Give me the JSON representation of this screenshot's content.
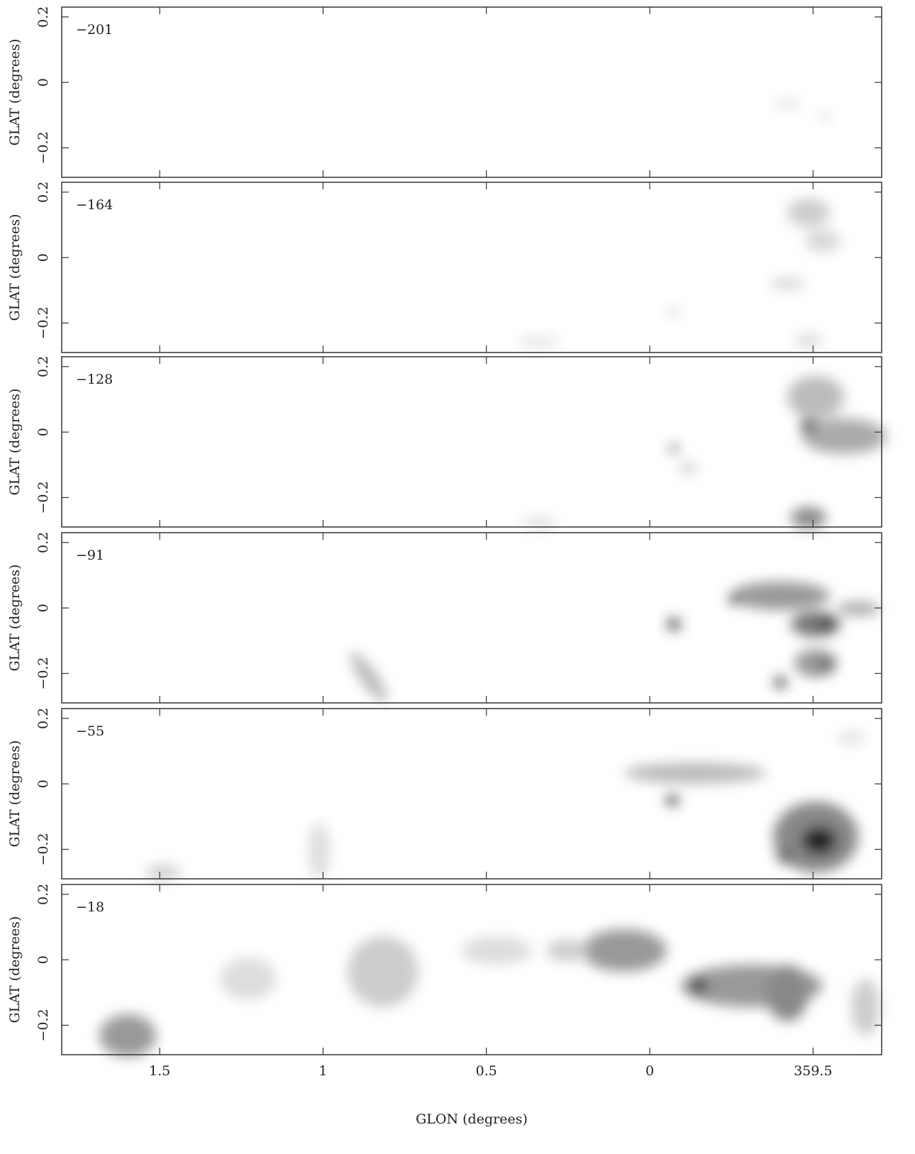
{
  "chart_data": [
    {
      "type": "image",
      "label": "−201",
      "ylabel": "GLAT (degrees)",
      "xlim": [
        1.8,
        -0.71
      ],
      "ylim": [
        -0.29,
        0.23
      ],
      "xticks": [
        1.5,
        1,
        0.5,
        0,
        {
          "value": -0.5,
          "label": "359.5"
        }
      ],
      "yticks": [
        0.2,
        0,
        {
          "value": -0.2,
          "label": "−0.2"
        }
      ]
    },
    {
      "type": "image",
      "label": "−164",
      "ylabel": "GLAT (degrees)",
      "xlim": [
        1.8,
        -0.71
      ],
      "ylim": [
        -0.29,
        0.23
      ],
      "xticks": [
        1.5,
        1,
        0.5,
        0,
        {
          "value": -0.5,
          "label": "359.5"
        }
      ],
      "yticks": [
        0.2,
        0,
        {
          "value": -0.2,
          "label": "−0.2"
        }
      ]
    },
    {
      "type": "image",
      "label": "−128",
      "ylabel": "GLAT (degrees)",
      "xlim": [
        1.8,
        -0.71
      ],
      "ylim": [
        -0.29,
        0.23
      ],
      "xticks": [
        1.5,
        1,
        0.5,
        0,
        {
          "value": -0.5,
          "label": "359.5"
        }
      ],
      "yticks": [
        0.2,
        0,
        {
          "value": -0.2,
          "label": "−0.2"
        }
      ]
    },
    {
      "type": "image",
      "label": "−91",
      "ylabel": "GLAT (degrees)",
      "xlim": [
        1.8,
        -0.71
      ],
      "ylim": [
        -0.29,
        0.23
      ],
      "xticks": [
        1.5,
        1,
        0.5,
        0,
        {
          "value": -0.5,
          "label": "359.5"
        }
      ],
      "yticks": [
        0.2,
        0,
        {
          "value": -0.2,
          "label": "−0.2"
        }
      ]
    },
    {
      "type": "image",
      "label": "−55",
      "ylabel": "GLAT (degrees)",
      "xlim": [
        1.8,
        -0.71
      ],
      "ylim": [
        -0.29,
        0.23
      ],
      "xticks": [
        1.5,
        1,
        0.5,
        0,
        {
          "value": -0.5,
          "label": "359.5"
        }
      ],
      "yticks": [
        0.2,
        0,
        {
          "value": -0.2,
          "label": "−0.2"
        }
      ]
    },
    {
      "type": "image",
      "label": "−18",
      "ylabel": "GLAT (degrees)",
      "xlabel": "GLON (degrees)",
      "xlim": [
        1.8,
        -0.71
      ],
      "ylim": [
        -0.29,
        0.23
      ],
      "xticks": [
        1.5,
        1,
        0.5,
        0,
        {
          "value": -0.5,
          "label": "359.5"
        }
      ],
      "yticks": [
        0.2,
        0,
        {
          "value": -0.2,
          "label": "−0.2"
        }
      ]
    }
  ]
}
